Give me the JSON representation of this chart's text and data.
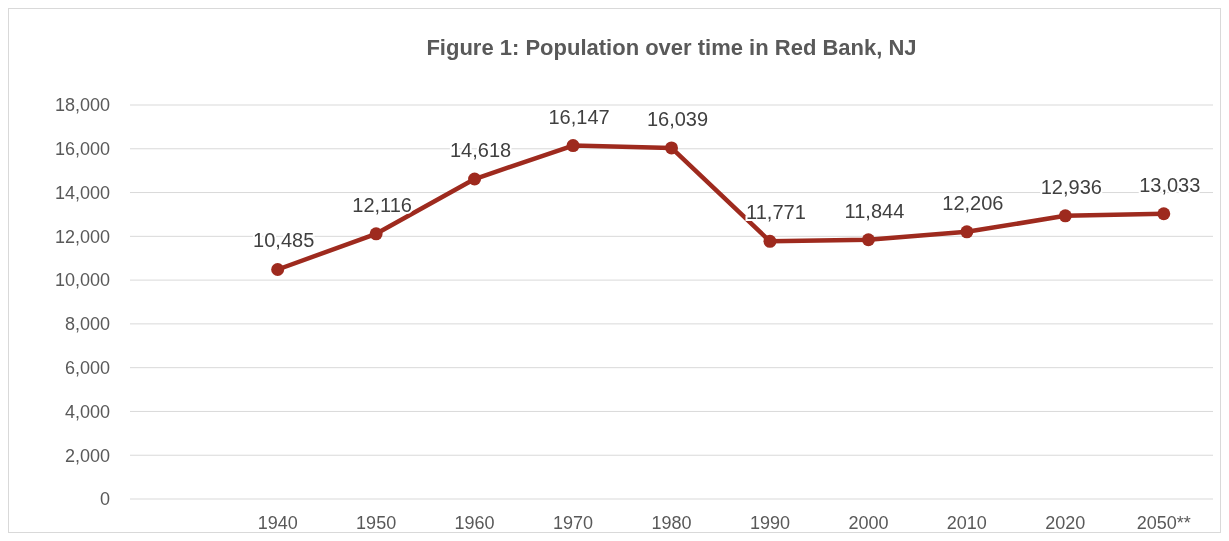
{
  "chart_data": {
    "type": "line",
    "title": "Figure 1: Population over time in Red Bank, NJ",
    "categories": [
      null,
      "1940",
      "1950",
      "1960",
      "1970",
      "1980",
      "1990",
      "2000",
      "2010",
      "2020",
      "2050**"
    ],
    "series": [
      {
        "color": "#9e2a1e",
        "values": [
          null,
          10485,
          12116,
          14618,
          16147,
          16039,
          11771,
          11844,
          12206,
          12936,
          13033
        ],
        "value_labels": [
          null,
          "10,485",
          "12,116",
          "14,618",
          "16,147",
          "16,039",
          "11,771",
          "11,844",
          "12,206",
          "12,936",
          "13,033"
        ]
      }
    ],
    "ylim": [
      0,
      18000
    ],
    "yticks": [
      {
        "value": 0,
        "label": "0"
      },
      {
        "value": 2000,
        "label": "2,000"
      },
      {
        "value": 4000,
        "label": "4,000"
      },
      {
        "value": 6000,
        "label": "6,000"
      },
      {
        "value": 8000,
        "label": "8,000"
      },
      {
        "value": 10000,
        "label": "10,000"
      },
      {
        "value": 12000,
        "label": "12,000"
      },
      {
        "value": 14000,
        "label": "14,000"
      },
      {
        "value": 16000,
        "label": "16,000"
      },
      {
        "value": 18000,
        "label": "18,000"
      }
    ],
    "grid": "y",
    "marker": "circle",
    "line_style": "solid"
  }
}
